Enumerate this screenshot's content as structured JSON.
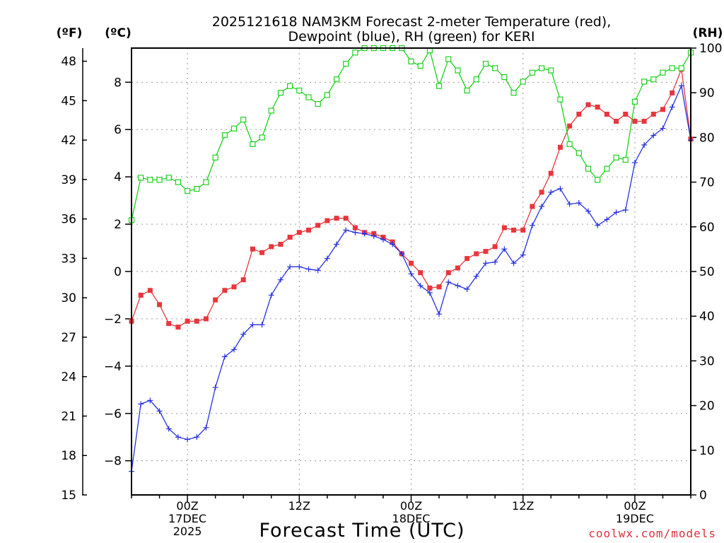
{
  "chart_data": {
    "type": "line",
    "title": [
      "2025121618 NAM3KM Forecast 2-meter Temperature (red),",
      "Dewpoint (blue), RH (green) for KERI"
    ],
    "xlabel": "Forecast Time (UTC)",
    "credit": "coolwx.com/models",
    "credit_color": "#d8323c",
    "units": {
      "fahrenheit": "(ºF)",
      "celsius": "(ºC)",
      "rh": "(RH)"
    },
    "x_range_hours": [
      18,
      78
    ],
    "x_ticks": [
      {
        "hour": 24,
        "lines": [
          "00Z",
          "17DEC",
          "2025"
        ]
      },
      {
        "hour": 36,
        "lines": [
          "12Z"
        ]
      },
      {
        "hour": 48,
        "lines": [
          "00Z",
          "18DEC"
        ]
      },
      {
        "hour": 60,
        "lines": [
          "12Z"
        ]
      },
      {
        "hour": 72,
        "lines": [
          "00Z",
          "19DEC"
        ]
      }
    ],
    "fahrenheit_axis": {
      "range": [
        15,
        49
      ],
      "ticks": [
        15,
        18,
        21,
        24,
        27,
        30,
        33,
        36,
        39,
        42,
        45,
        48
      ]
    },
    "celsius_axis": {
      "range": [
        -9.444,
        9.444
      ],
      "ticks": [
        -8,
        -6,
        -4,
        -2,
        0,
        2,
        4,
        6,
        8
      ]
    },
    "rh_axis": {
      "range": [
        0,
        100
      ],
      "ticks": [
        0,
        10,
        20,
        30,
        40,
        50,
        60,
        70,
        80,
        90,
        100
      ]
    },
    "series": [
      {
        "name": "2-meter Temperature",
        "unit": "C",
        "color": "#e8363c",
        "marker": "filled-square",
        "values": [
          -2.1,
          -1.0,
          -0.8,
          -1.4,
          -2.2,
          -2.35,
          -2.1,
          -2.1,
          -2.0,
          -1.2,
          -0.8,
          -0.65,
          -0.35,
          0.95,
          0.8,
          1.05,
          1.15,
          1.45,
          1.65,
          1.75,
          1.95,
          2.15,
          2.25,
          2.25,
          1.85,
          1.65,
          1.6,
          1.45,
          1.25,
          0.75,
          0.35,
          -0.05,
          -0.7,
          -0.65,
          -0.05,
          0.15,
          0.55,
          0.75,
          0.85,
          1.05,
          1.85,
          1.75,
          1.75,
          2.75,
          3.35,
          4.15,
          5.25,
          6.15,
          6.65,
          7.05,
          6.95,
          6.65,
          6.35,
          6.65,
          6.35,
          6.35,
          6.65,
          6.85,
          7.55,
          8.55,
          5.6
        ]
      },
      {
        "name": "Dewpoint",
        "unit": "C",
        "color": "#2832e0",
        "marker": "plus",
        "values": [
          -8.45,
          -5.6,
          -5.45,
          -5.9,
          -6.65,
          -7.0,
          -7.1,
          -7.0,
          -6.6,
          -4.9,
          -3.6,
          -3.3,
          -2.65,
          -2.25,
          -2.25,
          -1.0,
          -0.35,
          0.2,
          0.2,
          0.1,
          0.05,
          0.55,
          1.15,
          1.75,
          1.65,
          1.6,
          1.5,
          1.35,
          1.15,
          0.75,
          -0.1,
          -0.6,
          -0.9,
          -1.8,
          -0.45,
          -0.6,
          -0.75,
          -0.2,
          0.35,
          0.4,
          0.95,
          0.35,
          0.7,
          1.95,
          2.75,
          3.35,
          3.5,
          2.85,
          2.9,
          2.55,
          1.95,
          2.2,
          2.5,
          2.6,
          4.6,
          5.35,
          5.75,
          6.05,
          6.95,
          7.85,
          5.55
        ]
      },
      {
        "name": "RH",
        "unit": "%",
        "color": "#1ed21e",
        "marker": "open-square",
        "values": [
          61.5,
          71,
          70.5,
          70.5,
          71,
          70,
          68,
          68.5,
          70,
          75.5,
          80.5,
          82,
          84,
          78.5,
          80,
          86,
          90,
          91.5,
          90.5,
          89,
          87.5,
          89.5,
          93,
          96.5,
          99,
          100,
          100,
          100,
          100,
          100,
          97,
          96,
          99.5,
          91.5,
          97.5,
          95,
          90.5,
          93,
          96.5,
          95.5,
          93.5,
          90,
          92.5,
          94.5,
          95.5,
          95,
          88.5,
          78.5,
          76.5,
          73,
          70.5,
          73,
          75.5,
          75,
          88,
          92.5,
          93,
          94.5,
          95.5,
          95.5,
          99
        ]
      }
    ]
  }
}
